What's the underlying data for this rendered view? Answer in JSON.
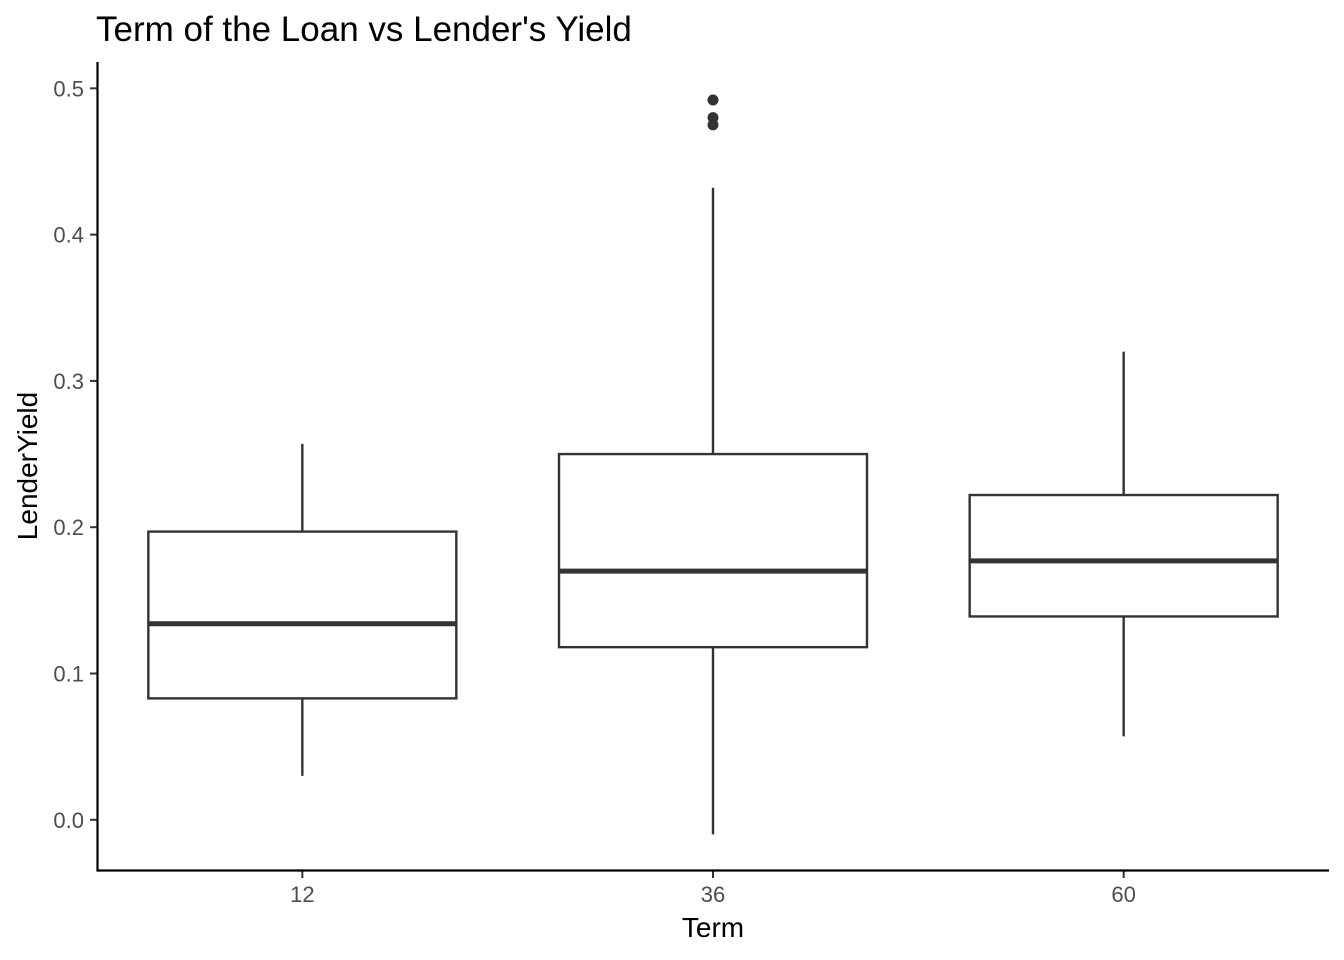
{
  "chart_data": {
    "type": "boxplot",
    "title": "Term of the Loan vs Lender's Yield",
    "xlabel": "Term",
    "ylabel": "LenderYield",
    "categories": [
      "12",
      "36",
      "60"
    ],
    "ylim": [
      -0.035,
      0.518
    ],
    "yticks": [
      0.0,
      0.1,
      0.2,
      0.3,
      0.4,
      0.5
    ],
    "ytick_labels": [
      "0.0",
      "0.1",
      "0.2",
      "0.3",
      "0.4",
      "0.5"
    ],
    "boxes": [
      {
        "category": "12",
        "whisker_low": 0.03,
        "q1": 0.083,
        "median": 0.134,
        "q3": 0.197,
        "whisker_high": 0.257,
        "outliers": []
      },
      {
        "category": "36",
        "whisker_low": -0.01,
        "q1": 0.118,
        "median": 0.17,
        "q3": 0.25,
        "whisker_high": 0.432,
        "outliers": [
          0.475,
          0.48,
          0.492
        ]
      },
      {
        "category": "60",
        "whisker_low": 0.057,
        "q1": 0.139,
        "median": 0.177,
        "q3": 0.222,
        "whisker_high": 0.32,
        "outliers": []
      }
    ],
    "grid": false,
    "legend": "none",
    "colors": {
      "box_line": "#333333",
      "axis": "#000000",
      "tick_text": "#4d4d4d",
      "title_text": "#000000"
    }
  }
}
